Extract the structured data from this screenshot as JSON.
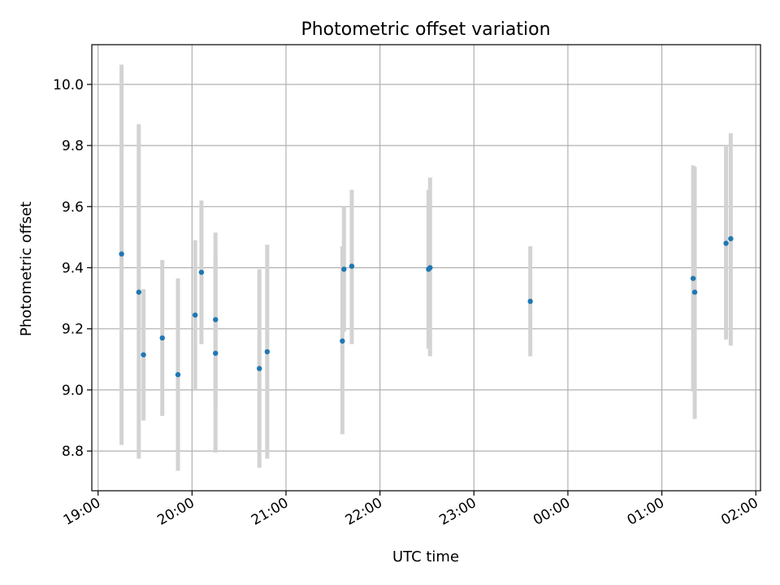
{
  "chart_data": {
    "type": "scatter",
    "title": "Photometric offset variation",
    "xlabel": "UTC time",
    "ylabel": "Photometric offset",
    "grid": true,
    "x_tick_labels": [
      "19:00",
      "20:00",
      "21:00",
      "22:00",
      "23:00",
      "00:00",
      "01:00",
      "02:00"
    ],
    "y_ticks": [
      8.8,
      9.0,
      9.2,
      9.4,
      9.6,
      9.8,
      10.0
    ],
    "y_tick_labels": [
      "8.8",
      "9.0",
      "9.2",
      "9.4",
      "9.6",
      "9.8",
      "10.0"
    ],
    "xlim": [
      "18:56",
      "02:03"
    ],
    "ylim": [
      8.67,
      10.13
    ],
    "colors": {
      "points": "#1f77b4",
      "error_bars": "#d3d3d3",
      "grid": "#b0b0b0"
    },
    "points": [
      {
        "x": "19:15",
        "y": 9.445,
        "ylow": 8.82,
        "yhigh": 10.065
      },
      {
        "x": "19:26",
        "y": 9.32,
        "ylow": 8.775,
        "yhigh": 9.87
      },
      {
        "x": "19:29",
        "y": 9.115,
        "ylow": 8.9,
        "yhigh": 9.33
      },
      {
        "x": "19:41",
        "y": 9.17,
        "ylow": 8.915,
        "yhigh": 9.425
      },
      {
        "x": "19:51",
        "y": 9.05,
        "ylow": 8.735,
        "yhigh": 9.365
      },
      {
        "x": "20:02",
        "y": 9.245,
        "ylow": 9.0,
        "yhigh": 9.49
      },
      {
        "x": "20:06",
        "y": 9.385,
        "ylow": 9.15,
        "yhigh": 9.62
      },
      {
        "x": "20:15",
        "y": 9.23,
        "ylow": 8.945,
        "yhigh": 9.515
      },
      {
        "x": "20:15",
        "y": 9.12,
        "ylow": 8.795,
        "yhigh": 9.445
      },
      {
        "x": "20:43",
        "y": 9.07,
        "ylow": 8.745,
        "yhigh": 9.395
      },
      {
        "x": "20:48",
        "y": 9.125,
        "ylow": 8.775,
        "yhigh": 9.475
      },
      {
        "x": "21:36",
        "y": 9.16,
        "ylow": 8.855,
        "yhigh": 9.47
      },
      {
        "x": "21:37",
        "y": 9.395,
        "ylow": 9.19,
        "yhigh": 9.6
      },
      {
        "x": "21:42",
        "y": 9.405,
        "ylow": 9.15,
        "yhigh": 9.655
      },
      {
        "x": "22:31",
        "y": 9.395,
        "ylow": 9.135,
        "yhigh": 9.655
      },
      {
        "x": "22:32",
        "y": 9.4,
        "ylow": 9.11,
        "yhigh": 9.695
      },
      {
        "x": "23:36",
        "y": 9.29,
        "ylow": 9.11,
        "yhigh": 9.47
      },
      {
        "x": "01:20",
        "y": 9.365,
        "ylow": 8.995,
        "yhigh": 9.735
      },
      {
        "x": "01:21",
        "y": 9.32,
        "ylow": 8.905,
        "yhigh": 9.73
      },
      {
        "x": "01:41",
        "y": 9.48,
        "ylow": 9.165,
        "yhigh": 9.8
      },
      {
        "x": "01:44",
        "y": 9.495,
        "ylow": 9.145,
        "yhigh": 9.84
      }
    ]
  }
}
